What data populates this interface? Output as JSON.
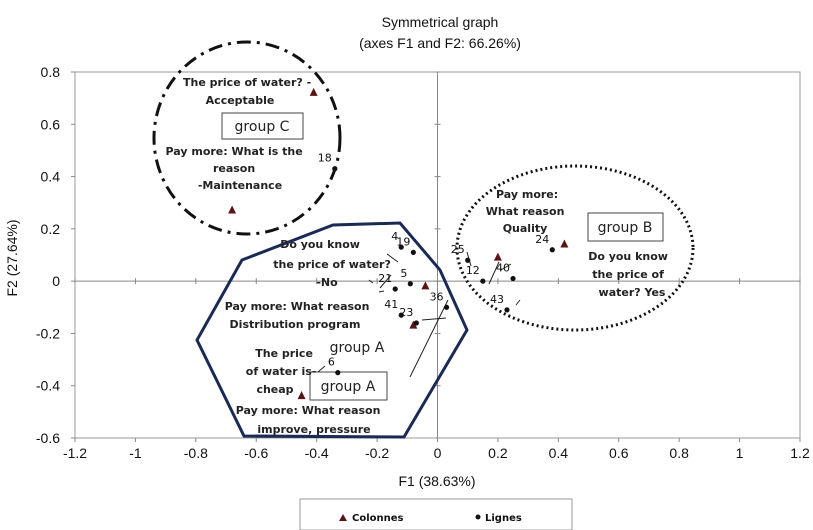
{
  "chart_data": {
    "type": "scatter",
    "title": "Symmetrical graph",
    "subtitle": "(axes F1 and F2: 66.26%)",
    "xlabel": "F1 (38.63%)",
    "ylabel": "F2 (27.64%)",
    "xlim": [
      -1.2,
      1.2
    ],
    "ylim": [
      -0.6,
      0.8
    ],
    "x_ticks": [
      "-1.2",
      "-1",
      "-0.8",
      "-0.6",
      "-0.4",
      "-0.2",
      "0",
      "0.2",
      "0.4",
      "0.6",
      "0.8",
      "1",
      "1.2"
    ],
    "y_ticks": [
      "-0.6",
      "-0.4",
      "-0.2",
      "0",
      "0.2",
      "0.4",
      "0.6",
      "0.8"
    ],
    "grid": false,
    "legend_position": "bottom-center",
    "series": [
      {
        "name": "Colonnes",
        "marker": "triangle",
        "color": "#5a1414",
        "points": [
          {
            "x": -0.41,
            "y": 0.72
          },
          {
            "x": -0.68,
            "y": 0.27
          },
          {
            "x": -0.04,
            "y": -0.02
          },
          {
            "x": 0.2,
            "y": 0.09
          },
          {
            "x": 0.42,
            "y": 0.14
          },
          {
            "x": -0.08,
            "y": -0.17
          },
          {
            "x": -0.45,
            "y": -0.44
          }
        ]
      },
      {
        "name": "Lignes",
        "marker": "circle",
        "color": "#111111",
        "points": [
          {
            "label": "18",
            "x": -0.34,
            "y": 0.43
          },
          {
            "label": "4",
            "x": -0.12,
            "y": 0.13
          },
          {
            "label": "19",
            "x": -0.08,
            "y": 0.11
          },
          {
            "label": "5",
            "x": -0.09,
            "y": -0.01
          },
          {
            "label": "21",
            "x": -0.14,
            "y": -0.03
          },
          {
            "label": "41",
            "x": -0.12,
            "y": -0.13
          },
          {
            "label": "23",
            "x": -0.07,
            "y": -0.16
          },
          {
            "label": "36",
            "x": 0.03,
            "y": -0.1
          },
          {
            "label": "6",
            "x": -0.33,
            "y": -0.35
          },
          {
            "label": "25",
            "x": 0.1,
            "y": 0.08
          },
          {
            "label": "12",
            "x": 0.15,
            "y": 0.0
          },
          {
            "label": "40",
            "x": 0.25,
            "y": 0.01
          },
          {
            "label": "24",
            "x": 0.38,
            "y": 0.12
          },
          {
            "label": "43",
            "x": 0.23,
            "y": -0.11
          }
        ]
      }
    ],
    "annotations": {
      "price_acceptable": [
        "The price of water? -",
        "Acceptable"
      ],
      "pay_maintenance": [
        "Pay more: What is the",
        "reason",
        "-Maintenance"
      ],
      "know_price_no": [
        "Do you know",
        "the price of water?",
        "-No"
      ],
      "pay_distribution": [
        "Pay more: What reason",
        "Distribution program"
      ],
      "price_cheap": [
        "The price",
        "of water is-",
        "cheap"
      ],
      "pay_pressure": [
        "Pay more: What reason",
        "improve, pressure"
      ],
      "pay_quality": [
        "Pay more:",
        "What reason",
        "Quality"
      ],
      "know_price_yes": [
        "Do you know",
        "the price of",
        "water? Yes"
      ]
    },
    "groups": {
      "group_c": "group C",
      "group_b": "group B",
      "group_a_1": "group A",
      "group_a_2": "group A"
    },
    "legend": {
      "colonnes": "Colonnes",
      "lignes": "Lignes"
    }
  }
}
